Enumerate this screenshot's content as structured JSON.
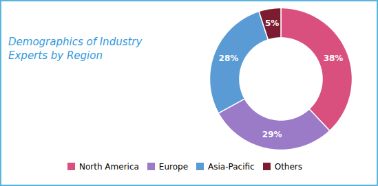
{
  "chart_data": {
    "type": "pie",
    "title": "Demographics of Industry\nExperts by Region",
    "categories": [
      "North America",
      "Europe",
      "Asia-Pacific",
      "Others"
    ],
    "values": [
      38,
      29,
      28,
      5
    ],
    "value_labels": [
      "38%",
      "29%",
      "28%",
      "5%"
    ],
    "colors": [
      "#d94f7e",
      "#9b7ac7",
      "#5b9bd5",
      "#7b1c30"
    ],
    "data_labels": true,
    "legend": "bottom"
  }
}
